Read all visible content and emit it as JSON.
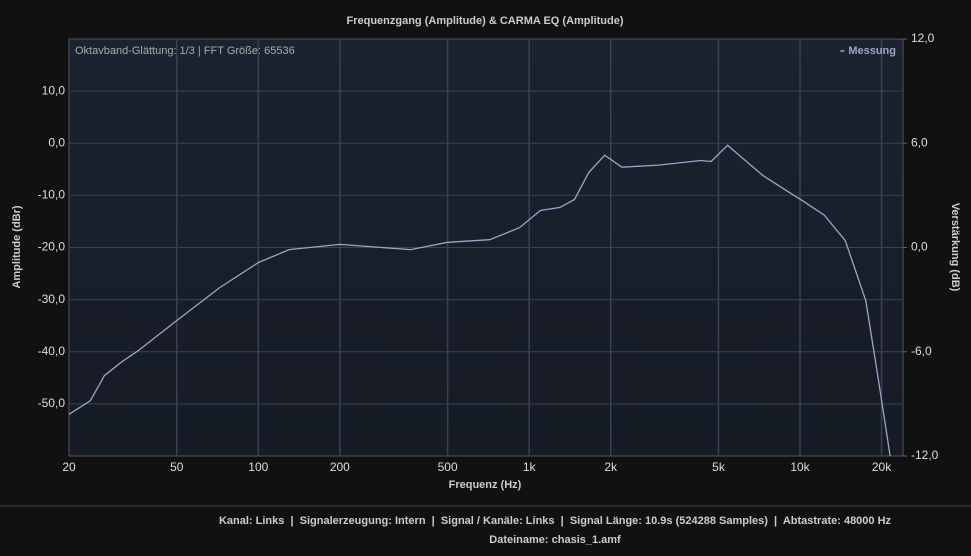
{
  "chart_data": {
    "type": "line",
    "title": "Frequenzgang (Amplitude) & CARMA EQ (Amplitude)",
    "annotation": "Oktavband-Glättung: 1/3 | FFT Größe: 65536",
    "x_label": "Frequenz (Hz)",
    "y_label": "Amplitude (dBr)",
    "y2_label": "Verstärkung (dB)",
    "x_scale": "log",
    "grid": true,
    "legend": "top-right",
    "xlim": [
      20,
      24000
    ],
    "xticks": [
      20,
      50,
      100,
      200,
      500,
      {
        "value": 1000,
        "label": "1k"
      },
      {
        "value": 2000,
        "label": "2k"
      },
      {
        "value": 5000,
        "label": "5k"
      },
      {
        "value": 10000,
        "label": "10k"
      },
      {
        "value": 20000,
        "label": "20k"
      }
    ],
    "ylim": [
      -60,
      20
    ],
    "yticks": [
      {
        "value": -50,
        "label": "-50,0"
      },
      {
        "value": -40,
        "label": "-40,0"
      },
      {
        "value": -30,
        "label": "-30,0"
      },
      {
        "value": -20,
        "label": "-20,0"
      },
      {
        "value": -10,
        "label": "-10,0"
      },
      {
        "value": 0,
        "label": "0,0"
      },
      {
        "value": 10,
        "label": "10,0"
      }
    ],
    "y2lim": [
      -12,
      12
    ],
    "y2ticks": [
      {
        "value": -12,
        "label": "-12,0"
      },
      {
        "value": -6,
        "label": "-6,0"
      },
      {
        "value": 0,
        "label": "0,0"
      },
      {
        "value": 6,
        "label": "6,0"
      },
      {
        "value": 12,
        "label": "12,0"
      }
    ],
    "x": [
      20,
      24,
      27,
      31,
      36,
      50,
      72,
      100,
      130,
      200,
      365,
      500,
      715,
      920,
      1100,
      1300,
      1470,
      1660,
      1900,
      2200,
      3000,
      4300,
      4700,
      5400,
      7300,
      9100,
      10200,
      12300,
      14700,
      17500,
      19500,
      21500
    ],
    "series": [
      {
        "name": "Messung",
        "color": "#9aa6c8",
        "values": [
          -52,
          -49.4,
          -44.6,
          -42.1,
          -39.8,
          -34,
          -27.7,
          -22.9,
          -20.4,
          -19.4,
          -20.4,
          -19,
          -18.5,
          -16.2,
          -12.9,
          -12.3,
          -10.8,
          -5.6,
          -2.3,
          -4.6,
          -4.2,
          -3.3,
          -3.5,
          -0.4,
          -6.2,
          -9.4,
          -11,
          -13.8,
          -18.7,
          -30.2,
          -45.6,
          -60
        ]
      }
    ],
    "footer": "Kanal: Links  |  Signalerzeugung: Intern  |  Signal / Kanäle: Links  |  Signal Länge: 10.9s (524288 Samples)  |  Abtastrate: 48000 Hz",
    "filename": "Dateiname: chasis_1.amf"
  }
}
